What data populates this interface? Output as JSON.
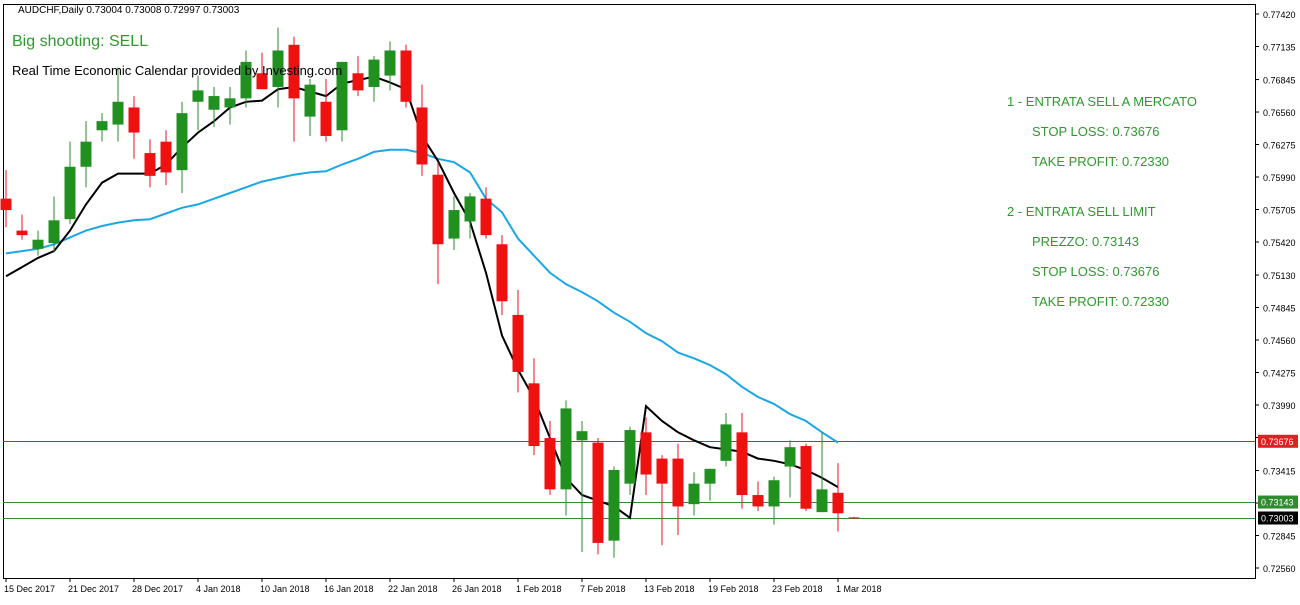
{
  "header": {
    "symbol": "AUDCHF,Daily",
    "ohlc": "0.73004 0.73008 0.72997 0.73003"
  },
  "signal_text": "Big shooting: SELL",
  "calendar_text": "Real Time Economic Calendar provided by Investing.com",
  "annotations": {
    "t1": "1 - ENTRATA SELL A MERCATO",
    "t1_sl": "STOP LOSS: 0.73676",
    "t1_tp": "TAKE PROFIT: 0.72330",
    "t2": "2 - ENTRATA SELL LIMIT",
    "t2_price": "PREZZO: 0.73143",
    "t2_sl": "STOP LOSS: 0.73676",
    "t2_tp": "TAKE PROFIT: 0.72330"
  },
  "chart_data": {
    "type": "candlestick",
    "symbol": "AUDCHF",
    "timeframe": "Daily",
    "ylim": [
      0.7256,
      0.7742
    ],
    "y_ticks": [
      "0.77420",
      "0.77135",
      "0.76845",
      "0.76560",
      "0.76275",
      "0.75990",
      "0.75705",
      "0.75420",
      "0.75130",
      "0.74845",
      "0.74560",
      "0.74275",
      "0.73990",
      "0.73705",
      "0.73415",
      "0.73130",
      "0.72845",
      "0.72560"
    ],
    "x_tick_labels": [
      {
        "label": "15 Dec 2017",
        "index": 0
      },
      {
        "label": "21 Dec 2017",
        "index": 4
      },
      {
        "label": "28 Dec 2017",
        "index": 8
      },
      {
        "label": "4 Jan 2018",
        "index": 12
      },
      {
        "label": "10 Jan 2018",
        "index": 16
      },
      {
        "label": "16 Jan 2018",
        "index": 20
      },
      {
        "label": "22 Jan 2018",
        "index": 24
      },
      {
        "label": "26 Jan 2018",
        "index": 28
      },
      {
        "label": "1 Feb 2018",
        "index": 32
      },
      {
        "label": "7 Feb 2018",
        "index": 36
      },
      {
        "label": "13 Feb 2018",
        "index": 40
      },
      {
        "label": "19 Feb 2018",
        "index": 44
      },
      {
        "label": "23 Feb 2018",
        "index": 48
      },
      {
        "label": "1 Mar 2018",
        "index": 52
      }
    ],
    "candles": [
      {
        "o": 0.758,
        "h": 0.7605,
        "l": 0.7555,
        "c": 0.757
      },
      {
        "o": 0.7552,
        "h": 0.7566,
        "l": 0.7544,
        "c": 0.7548
      },
      {
        "o": 0.7536,
        "h": 0.7552,
        "l": 0.753,
        "c": 0.7544
      },
      {
        "o": 0.7541,
        "h": 0.7582,
        "l": 0.7533,
        "c": 0.7561
      },
      {
        "o": 0.7562,
        "h": 0.763,
        "l": 0.7558,
        "c": 0.7608
      },
      {
        "o": 0.7608,
        "h": 0.7648,
        "l": 0.759,
        "c": 0.763
      },
      {
        "o": 0.764,
        "h": 0.7655,
        "l": 0.763,
        "c": 0.7648
      },
      {
        "o": 0.7645,
        "h": 0.7695,
        "l": 0.763,
        "c": 0.7665
      },
      {
        "o": 0.766,
        "h": 0.767,
        "l": 0.7615,
        "c": 0.7638
      },
      {
        "o": 0.762,
        "h": 0.7632,
        "l": 0.759,
        "c": 0.76
      },
      {
        "o": 0.763,
        "h": 0.764,
        "l": 0.7592,
        "c": 0.7603
      },
      {
        "o": 0.7605,
        "h": 0.7665,
        "l": 0.7585,
        "c": 0.7655
      },
      {
        "o": 0.7665,
        "h": 0.7688,
        "l": 0.764,
        "c": 0.7675
      },
      {
        "o": 0.7658,
        "h": 0.7678,
        "l": 0.7643,
        "c": 0.767
      },
      {
        "o": 0.766,
        "h": 0.7678,
        "l": 0.7645,
        "c": 0.7668
      },
      {
        "o": 0.7668,
        "h": 0.771,
        "l": 0.766,
        "c": 0.77
      },
      {
        "o": 0.769,
        "h": 0.7708,
        "l": 0.7678,
        "c": 0.7676
      },
      {
        "o": 0.7678,
        "h": 0.773,
        "l": 0.766,
        "c": 0.771
      },
      {
        "o": 0.7715,
        "h": 0.7722,
        "l": 0.763,
        "c": 0.7668
      },
      {
        "o": 0.7652,
        "h": 0.7685,
        "l": 0.7635,
        "c": 0.768
      },
      {
        "o": 0.7665,
        "h": 0.7685,
        "l": 0.763,
        "c": 0.7635
      },
      {
        "o": 0.764,
        "h": 0.77,
        "l": 0.763,
        "c": 0.77
      },
      {
        "o": 0.769,
        "h": 0.7705,
        "l": 0.767,
        "c": 0.7675
      },
      {
        "o": 0.7678,
        "h": 0.7705,
        "l": 0.7665,
        "c": 0.7702
      },
      {
        "o": 0.7688,
        "h": 0.7718,
        "l": 0.7675,
        "c": 0.771
      },
      {
        "o": 0.771,
        "h": 0.7715,
        "l": 0.766,
        "c": 0.7665
      },
      {
        "o": 0.766,
        "h": 0.768,
        "l": 0.76,
        "c": 0.761
      },
      {
        "o": 0.7601,
        "h": 0.7612,
        "l": 0.7505,
        "c": 0.754
      },
      {
        "o": 0.7545,
        "h": 0.7582,
        "l": 0.7535,
        "c": 0.757
      },
      {
        "o": 0.756,
        "h": 0.7585,
        "l": 0.7545,
        "c": 0.7582
      },
      {
        "o": 0.758,
        "h": 0.759,
        "l": 0.7545,
        "c": 0.7548
      },
      {
        "o": 0.754,
        "h": 0.7548,
        "l": 0.7478,
        "c": 0.749
      },
      {
        "o": 0.7478,
        "h": 0.75,
        "l": 0.741,
        "c": 0.7428
      },
      {
        "o": 0.7418,
        "h": 0.744,
        "l": 0.7355,
        "c": 0.7363
      },
      {
        "o": 0.737,
        "h": 0.7385,
        "l": 0.732,
        "c": 0.7325
      },
      {
        "o": 0.7325,
        "h": 0.7403,
        "l": 0.7302,
        "c": 0.7396
      },
      {
        "o": 0.7368,
        "h": 0.7385,
        "l": 0.727,
        "c": 0.7376
      },
      {
        "o": 0.7366,
        "h": 0.737,
        "l": 0.7268,
        "c": 0.7278
      },
      {
        "o": 0.728,
        "h": 0.7345,
        "l": 0.7265,
        "c": 0.7342
      },
      {
        "o": 0.733,
        "h": 0.738,
        "l": 0.732,
        "c": 0.7377
      },
      {
        "o": 0.7375,
        "h": 0.7388,
        "l": 0.732,
        "c": 0.7338
      },
      {
        "o": 0.7352,
        "h": 0.7355,
        "l": 0.7276,
        "c": 0.733
      },
      {
        "o": 0.7352,
        "h": 0.7365,
        "l": 0.7285,
        "c": 0.731
      },
      {
        "o": 0.7312,
        "h": 0.734,
        "l": 0.7302,
        "c": 0.733
      },
      {
        "o": 0.733,
        "h": 0.7343,
        "l": 0.7315,
        "c": 0.7343
      },
      {
        "o": 0.735,
        "h": 0.7392,
        "l": 0.7345,
        "c": 0.7382
      },
      {
        "o": 0.7375,
        "h": 0.7392,
        "l": 0.7308,
        "c": 0.732
      },
      {
        "o": 0.732,
        "h": 0.7332,
        "l": 0.7306,
        "c": 0.731
      },
      {
        "o": 0.731,
        "h": 0.7336,
        "l": 0.7294,
        "c": 0.7333
      },
      {
        "o": 0.7345,
        "h": 0.7368,
        "l": 0.7318,
        "c": 0.7362
      },
      {
        "o": 0.7363,
        "h": 0.7365,
        "l": 0.7306,
        "c": 0.7308
      },
      {
        "o": 0.7305,
        "h": 0.7375,
        "l": 0.7305,
        "c": 0.7325
      },
      {
        "o": 0.7322,
        "h": 0.7348,
        "l": 0.7288,
        "c": 0.7304
      },
      {
        "o": 0.73004,
        "h": 0.73008,
        "l": 0.72997,
        "c": 0.73003
      }
    ],
    "ma_fast": [
      0.7512,
      0.752,
      0.7528,
      0.7534,
      0.7552,
      0.7575,
      0.7594,
      0.7602,
      0.7602,
      0.7602,
      0.761,
      0.7625,
      0.7638,
      0.7648,
      0.766,
      0.7665,
      0.7666,
      0.7676,
      0.7678,
      0.7674,
      0.767,
      0.7681,
      0.7684,
      0.7687,
      0.7682,
      0.7676,
      0.7635,
      0.7613,
      0.7585,
      0.756,
      0.7515,
      0.746,
      0.743,
      0.7405,
      0.737,
      0.7335,
      0.732,
      0.7315,
      0.731,
      0.73,
      0.7398,
      0.7385,
      0.7375,
      0.7368,
      0.7362,
      0.736,
      0.7358,
      0.7352,
      0.735,
      0.7347,
      0.7342,
      0.7335,
      0.7327
    ],
    "ma_slow": [
      0.7532,
      0.7534,
      0.7536,
      0.754,
      0.7546,
      0.7552,
      0.7556,
      0.7559,
      0.7561,
      0.7562,
      0.7567,
      0.7572,
      0.7575,
      0.758,
      0.7585,
      0.759,
      0.7595,
      0.7598,
      0.7601,
      0.7603,
      0.7604,
      0.761,
      0.7615,
      0.7621,
      0.7623,
      0.7623,
      0.762,
      0.7615,
      0.7612,
      0.7603,
      0.758,
      0.7568,
      0.7545,
      0.753,
      0.7515,
      0.7505,
      0.7498,
      0.749,
      0.748,
      0.7472,
      0.7462,
      0.7455,
      0.7445,
      0.744,
      0.7434,
      0.7426,
      0.7415,
      0.7406,
      0.74,
      0.7391,
      0.7385,
      0.7375,
      0.7366
    ],
    "horizontal_lines": [
      {
        "price": 0.73676,
        "label": "0.73676",
        "color": "#dd2222"
      },
      {
        "price": 0.73143,
        "label": "0.73143",
        "color": "#2e8b2e"
      },
      {
        "price": 0.73003,
        "label": "0.73003",
        "color": "#2e8b2e"
      }
    ],
    "colors": {
      "bull": "#209020",
      "bear": "#ee1111",
      "ma_fast": "#000000",
      "ma_slow": "#1aa7e8",
      "stop_line": "#dd2222",
      "entry_line": "#2e8b2e",
      "price_tag_bg": "#000000"
    }
  }
}
